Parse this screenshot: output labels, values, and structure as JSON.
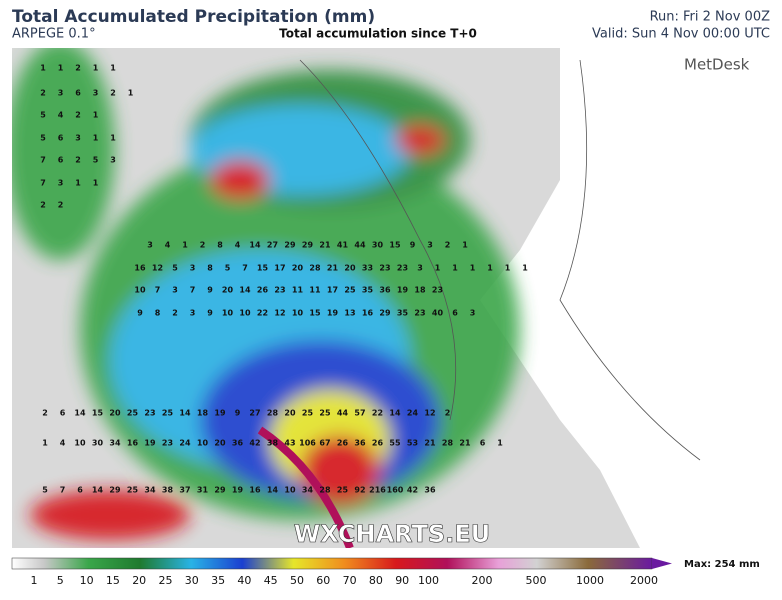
{
  "header": {
    "title": "Total Accumulated Precipitation (mm)",
    "model": "ARPEGE 0.1°",
    "subtitle": "Total accumulation since T+0",
    "run": "Run: Fri 2 Nov 00Z",
    "valid": "Valid: Sun 4 Nov 00:00 UTC"
  },
  "logo": "MetDesk",
  "watermark": "WXCHARTS.EU",
  "map": {
    "rows": [
      [
        1,
        1,
        2,
        1,
        1
      ],
      [
        2,
        3,
        6,
        3,
        2,
        1
      ],
      [
        5,
        4,
        2,
        1
      ],
      [
        5,
        6,
        3,
        1,
        1
      ],
      [
        7,
        6,
        2,
        5,
        3
      ],
      [
        7,
        3,
        1,
        1
      ],
      [
        2,
        2
      ],
      [
        3,
        4,
        1,
        2,
        8,
        4,
        14,
        27,
        29,
        29,
        21,
        41,
        44,
        30,
        15,
        9,
        3,
        2,
        1
      ],
      [
        16,
        12,
        5,
        3,
        8,
        5,
        7,
        15,
        17,
        20,
        28,
        21,
        20,
        33,
        23,
        23,
        3,
        1,
        1,
        1,
        1,
        1,
        1
      ],
      [
        10,
        7,
        3,
        7,
        9,
        20,
        14,
        26,
        23,
        11,
        11,
        17,
        25,
        35,
        36,
        19,
        18,
        23
      ],
      [
        9,
        8,
        2,
        3,
        9,
        10,
        10,
        22,
        12,
        10,
        15,
        19,
        13,
        16,
        29,
        35,
        23,
        40,
        6,
        3
      ],
      [
        2,
        6,
        14,
        15,
        20,
        25,
        23,
        25,
        14,
        18,
        19,
        9,
        27,
        28,
        20,
        25,
        25,
        44,
        57,
        22,
        14,
        24,
        12,
        2
      ],
      [
        1,
        4,
        10,
        30,
        34,
        16,
        19,
        23,
        24,
        10,
        20,
        36,
        42,
        38,
        43,
        106,
        67,
        26,
        36,
        26,
        55,
        53,
        21,
        28,
        21,
        6,
        1
      ],
      [
        5,
        7,
        6,
        14,
        29,
        25,
        34,
        38,
        37,
        31,
        29,
        19,
        16,
        14,
        10,
        34,
        28,
        25,
        92,
        216,
        160,
        42,
        36
      ]
    ]
  },
  "colorbar": {
    "ticks": [
      1,
      5,
      10,
      15,
      20,
      25,
      30,
      35,
      40,
      45,
      50,
      60,
      70,
      80,
      90,
      100,
      200,
      500,
      1000,
      2000
    ],
    "max_label": "Max: 254 mm"
  }
}
